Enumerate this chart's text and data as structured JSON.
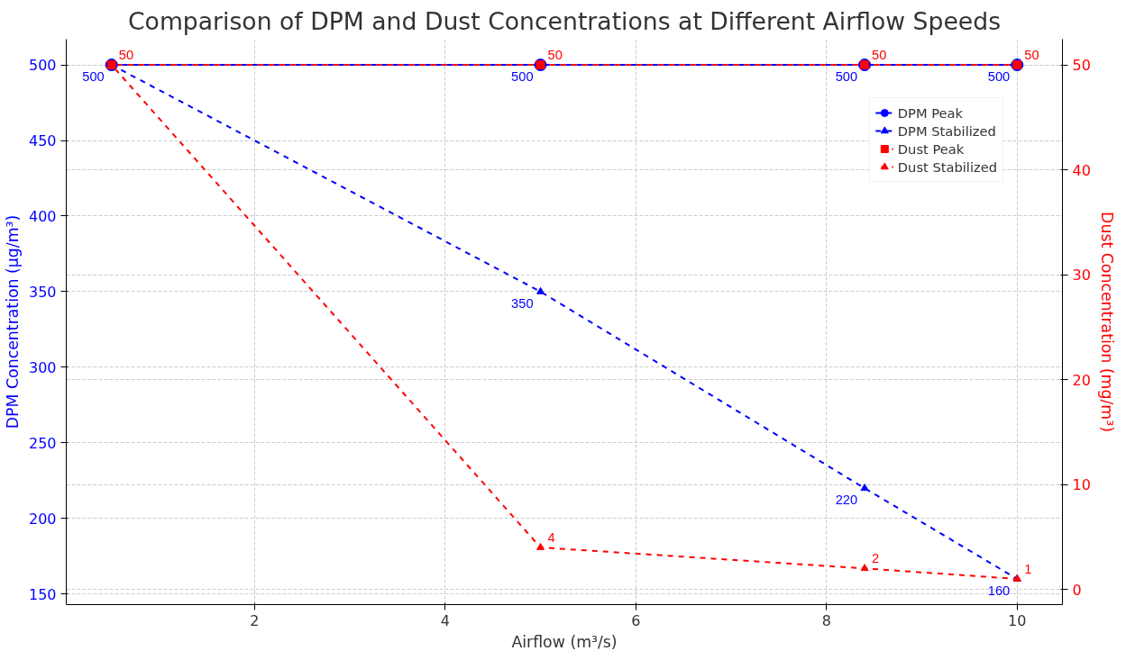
{
  "chart_data": {
    "type": "line",
    "title": "Comparison of DPM and Dust Concentrations at Different Airflow Speeds",
    "xlabel": "Airflow (m³/s)",
    "ylabel": "DPM Concentration (µg/m³)",
    "y2label": "Dust Concentration (mg/m³)",
    "x": [
      0.5,
      5,
      8.4,
      10
    ],
    "series": [
      {
        "name": "DPM Peak",
        "color": "#0000ff",
        "marker": "circle",
        "values": [
          500,
          500,
          500,
          500
        ],
        "value_labels": [
          "500",
          "500",
          "500",
          "500"
        ]
      },
      {
        "name": "DPM Stabilized",
        "color": "#0000ff",
        "marker": "triangle",
        "values": [
          500,
          350,
          220,
          160
        ],
        "value_labels": [
          null,
          "350",
          "220",
          "160"
        ]
      },
      {
        "name": "Dust Peak",
        "color": "#ff0000",
        "marker": "square",
        "axis": "y2",
        "values": [
          50,
          50,
          50,
          50
        ],
        "value_labels": [
          "50",
          "50",
          "50",
          "50"
        ]
      },
      {
        "name": "Dust Stabilized",
        "color": "#ff0000",
        "marker": "triangle",
        "axis": "y2",
        "values": [
          50,
          4,
          2,
          1
        ],
        "value_labels": [
          null,
          "4",
          "2",
          "1"
        ]
      }
    ],
    "xlim": [
      0.025,
      10.475
    ],
    "xticks": [
      2,
      4,
      6,
      8,
      10
    ],
    "ylim": [
      143,
      517
    ],
    "yticks": [
      150,
      200,
      250,
      300,
      350,
      400,
      450,
      500
    ],
    "y2lim": [
      -1.45,
      52.45
    ],
    "y2ticks": [
      0,
      10,
      20,
      30,
      40,
      50
    ],
    "grid": true,
    "legend": "top right",
    "line_style": "dashed"
  }
}
